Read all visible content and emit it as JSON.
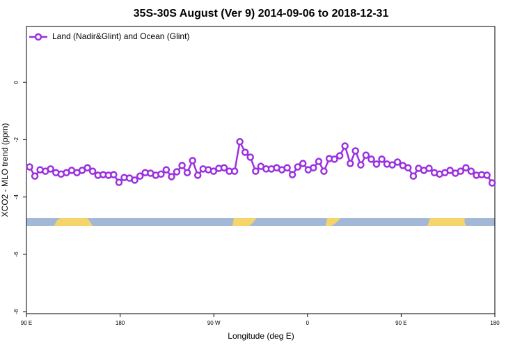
{
  "chart_data": {
    "type": "line",
    "title": "35S-30S August (Ver 9)   2014-09-06 to 2018-12-31",
    "xlabel": "Longitude (deg E)",
    "ylabel": "XCO2 - MLO trend (ppm)",
    "legend": "upper left",
    "xlim": [
      90,
      540
    ],
    "ylim": [
      -8.07,
      1.95
    ],
    "xticks": [
      {
        "value": 90,
        "label": "90 E"
      },
      180,
      {
        "value": 270,
        "label": "90 W"
      },
      {
        "value": 360,
        "label": "0"
      },
      {
        "value": 450,
        "label": "90 E"
      },
      {
        "value": 540,
        "label": "180"
      }
    ],
    "yticks": [
      0,
      -2,
      -4,
      -6,
      -8
    ],
    "x": [
      93.0,
      98.1,
      103.1,
      108.2,
      113.2,
      118.3,
      123.3,
      128.4,
      133.4,
      138.5,
      143.5,
      148.6,
      153.6,
      158.7,
      163.7,
      168.8,
      173.8,
      178.9,
      183.9,
      189.0,
      194.0,
      199.1,
      204.1,
      209.2,
      214.2,
      219.3,
      224.3,
      229.4,
      234.4,
      239.5,
      244.5,
      249.6,
      254.6,
      259.7,
      264.7,
      269.8,
      274.8,
      279.9,
      284.9,
      290.0,
      295.0,
      300.1,
      305.1,
      310.2,
      315.2,
      320.3,
      325.3,
      330.4,
      335.4,
      340.5,
      345.5,
      350.6,
      355.6,
      360.7,
      365.7,
      370.8,
      375.8,
      380.9,
      385.9,
      391.0,
      396.0,
      401.1,
      406.1,
      411.2,
      416.2,
      421.3,
      426.3,
      431.4,
      436.4,
      441.5,
      446.5,
      451.6,
      456.6,
      461.7,
      466.7,
      471.8,
      476.8,
      481.9,
      486.9,
      492.0,
      497.0,
      502.1,
      507.1,
      512.2,
      517.2,
      522.3,
      527.3,
      532.4,
      537.4
    ],
    "series": [
      {
        "name": "Land (Nadir&Glint) and Ocean (Glint)",
        "color": "#9b30e0",
        "values": [
          -2.95,
          -3.27,
          -3.05,
          -3.1,
          -3.02,
          -3.15,
          -3.2,
          -3.15,
          -3.07,
          -3.15,
          -3.07,
          -2.98,
          -3.1,
          -3.24,
          -3.22,
          -3.24,
          -3.22,
          -3.49,
          -3.32,
          -3.34,
          -3.41,
          -3.27,
          -3.15,
          -3.17,
          -3.24,
          -3.2,
          -3.05,
          -3.29,
          -3.12,
          -2.9,
          -3.15,
          -2.73,
          -3.24,
          -3.02,
          -3.05,
          -3.1,
          -3.0,
          -2.98,
          -3.1,
          -3.1,
          -2.07,
          -2.44,
          -2.61,
          -3.1,
          -2.93,
          -3.02,
          -3.02,
          -2.98,
          -3.05,
          -2.98,
          -3.22,
          -2.95,
          -2.83,
          -3.05,
          -2.98,
          -2.76,
          -3.1,
          -2.66,
          -2.68,
          -2.56,
          -2.22,
          -2.83,
          -2.39,
          -2.88,
          -2.54,
          -2.68,
          -2.85,
          -2.68,
          -2.85,
          -2.88,
          -2.78,
          -2.9,
          -2.98,
          -3.27,
          -3.0,
          -3.07,
          -3.0,
          -3.15,
          -3.2,
          -3.15,
          -3.07,
          -3.17,
          -3.1,
          -2.98,
          -3.1,
          -3.24,
          -3.22,
          -3.24,
          -3.51
        ]
      }
    ]
  }
}
